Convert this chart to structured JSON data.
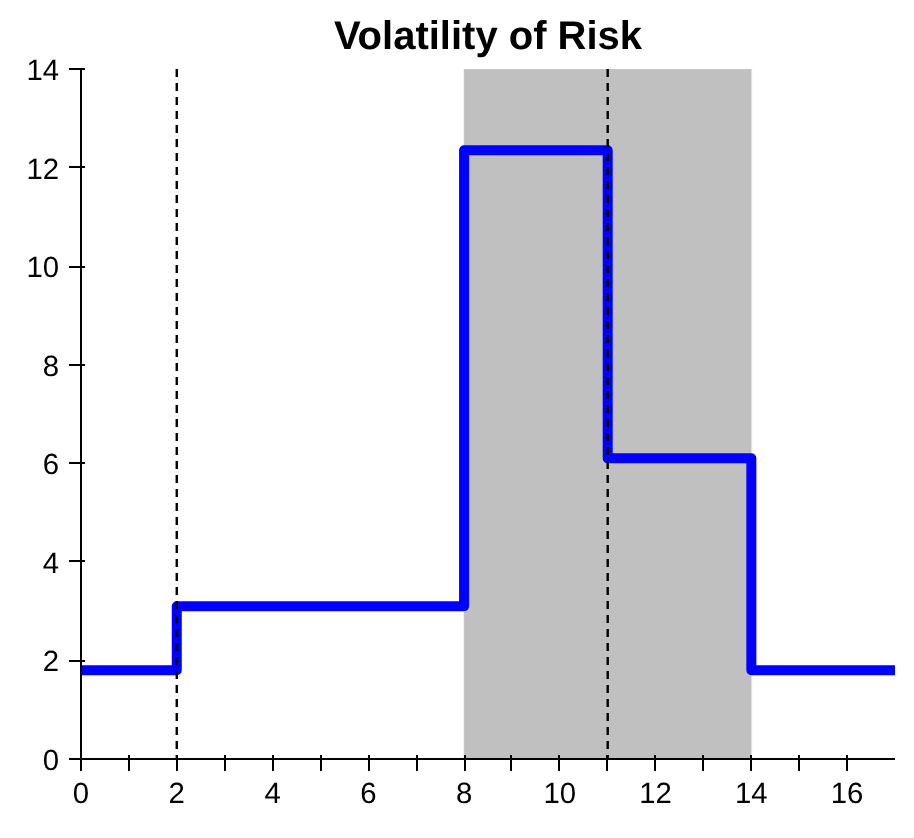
{
  "chart_data": {
    "type": "step",
    "title": "Volatility of Risk",
    "x": [
      0,
      2,
      8,
      11,
      14,
      17
    ],
    "series": [
      {
        "color": "#0000ff",
        "values": [
          1.8,
          3.1,
          12.35,
          6.1,
          1.8,
          1.8
        ]
      }
    ],
    "xlim": [
      0,
      17
    ],
    "ylim": [
      0,
      14
    ],
    "xticks": [
      0,
      {
        "value": 1,
        "label": null
      },
      2,
      {
        "value": 3,
        "label": null
      },
      4,
      {
        "value": 5,
        "label": null
      },
      6,
      {
        "value": 7,
        "label": null
      },
      8,
      {
        "value": 9,
        "label": null
      },
      10,
      {
        "value": 11,
        "label": null
      },
      12,
      {
        "value": 13,
        "label": null
      },
      14,
      {
        "value": 15,
        "label": null
      },
      16
    ],
    "yticks": [
      0,
      2,
      4,
      6,
      8,
      10,
      12,
      14
    ],
    "grid": false,
    "marker": "none",
    "line_style": "solid",
    "ref_lines": [
      {
        "axis": "x",
        "value": 2,
        "color": "#000000",
        "line_style": "dashed"
      },
      {
        "axis": "x",
        "value": 11,
        "color": "#000000",
        "line_style": "dashed"
      }
    ],
    "bands": [
      {
        "axis": "x",
        "from": 8,
        "to": 14,
        "color": "#c0c0c0"
      }
    ]
  }
}
